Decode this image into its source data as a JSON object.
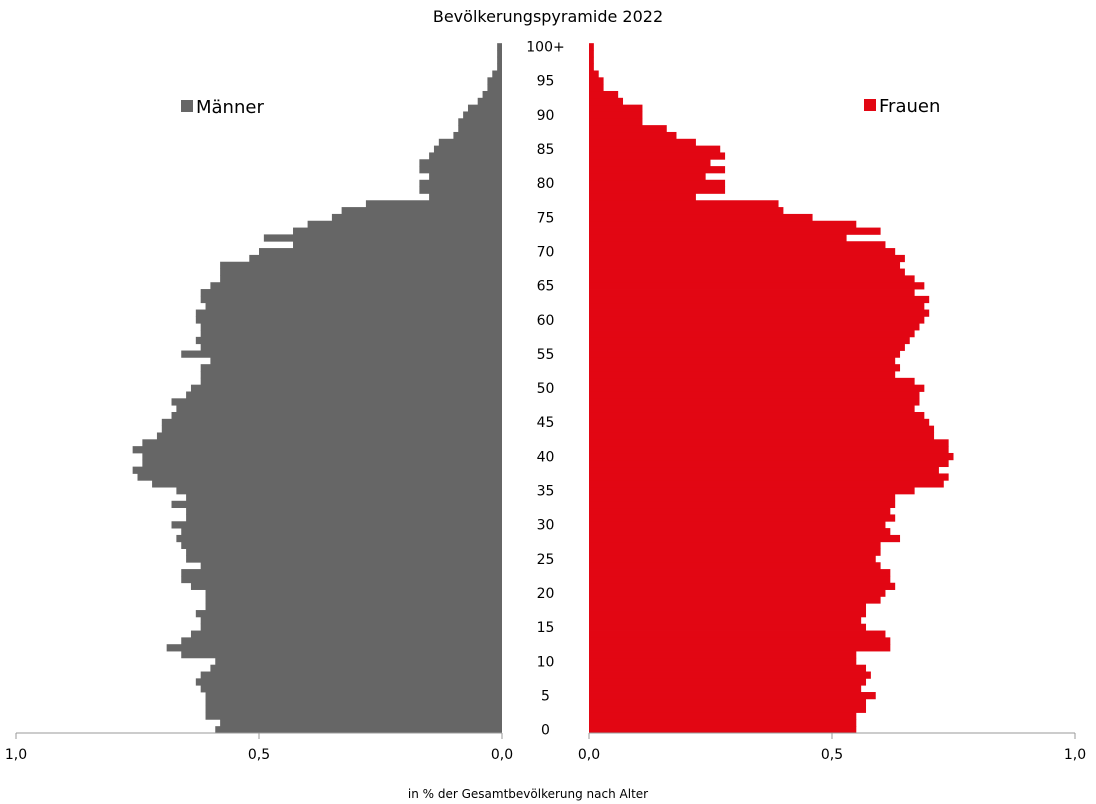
{
  "chart_data": {
    "type": "bar",
    "orientation": "horizontal",
    "title": "Bevölkerungspyramide 2022",
    "xlabel": "in % der Gesamtbevölkerung nach Alter",
    "ylabel": "",
    "xlim": [
      0,
      1.0
    ],
    "x_ticks": [
      "1,0",
      "0,5",
      "0,0",
      "0,0",
      "0,5",
      "1,0"
    ],
    "age_ticks": [
      "0",
      "5",
      "10",
      "15",
      "20",
      "25",
      "30",
      "35",
      "40",
      "45",
      "50",
      "55",
      "60",
      "65",
      "70",
      "75",
      "80",
      "85",
      "90",
      "95",
      "100+"
    ],
    "legend_position": "inside-top",
    "grid": false,
    "series": [
      {
        "name": "Männer",
        "color": "#666666",
        "side": "left",
        "values": [
          0.59,
          0.58,
          0.61,
          0.61,
          0.61,
          0.61,
          0.62,
          0.63,
          0.62,
          0.6,
          0.59,
          0.66,
          0.69,
          0.66,
          0.64,
          0.62,
          0.62,
          0.63,
          0.61,
          0.61,
          0.61,
          0.64,
          0.66,
          0.66,
          0.62,
          0.65,
          0.65,
          0.66,
          0.67,
          0.66,
          0.68,
          0.65,
          0.65,
          0.68,
          0.65,
          0.67,
          0.72,
          0.75,
          0.76,
          0.74,
          0.74,
          0.76,
          0.74,
          0.71,
          0.7,
          0.7,
          0.68,
          0.67,
          0.68,
          0.65,
          0.64,
          0.62,
          0.62,
          0.62,
          0.6,
          0.66,
          0.62,
          0.63,
          0.62,
          0.62,
          0.63,
          0.63,
          0.61,
          0.62,
          0.62,
          0.6,
          0.58,
          0.58,
          0.58,
          0.52,
          0.5,
          0.43,
          0.49,
          0.43,
          0.4,
          0.35,
          0.33,
          0.28,
          0.15,
          0.17,
          0.17,
          0.15,
          0.17,
          0.17,
          0.15,
          0.14,
          0.13,
          0.1,
          0.09,
          0.09,
          0.08,
          0.07,
          0.05,
          0.04,
          0.03,
          0.03,
          0.02,
          0.01,
          0.01,
          0.01,
          0.01
        ]
      },
      {
        "name": "Frauen",
        "color": "#e20613",
        "side": "right",
        "values": [
          0.55,
          0.55,
          0.55,
          0.57,
          0.57,
          0.59,
          0.56,
          0.57,
          0.58,
          0.57,
          0.55,
          0.55,
          0.62,
          0.62,
          0.61,
          0.57,
          0.56,
          0.57,
          0.57,
          0.6,
          0.61,
          0.63,
          0.62,
          0.62,
          0.6,
          0.59,
          0.6,
          0.6,
          0.64,
          0.62,
          0.61,
          0.63,
          0.62,
          0.63,
          0.63,
          0.67,
          0.73,
          0.74,
          0.72,
          0.74,
          0.75,
          0.74,
          0.74,
          0.71,
          0.71,
          0.7,
          0.69,
          0.67,
          0.68,
          0.68,
          0.69,
          0.67,
          0.63,
          0.64,
          0.63,
          0.64,
          0.65,
          0.66,
          0.67,
          0.68,
          0.69,
          0.7,
          0.69,
          0.7,
          0.67,
          0.69,
          0.67,
          0.65,
          0.64,
          0.65,
          0.63,
          0.61,
          0.53,
          0.6,
          0.55,
          0.46,
          0.4,
          0.39,
          0.22,
          0.28,
          0.28,
          0.24,
          0.28,
          0.25,
          0.28,
          0.27,
          0.22,
          0.18,
          0.16,
          0.11,
          0.11,
          0.11,
          0.07,
          0.06,
          0.03,
          0.03,
          0.02,
          0.01,
          0.01,
          0.01,
          0.01
        ]
      }
    ]
  }
}
